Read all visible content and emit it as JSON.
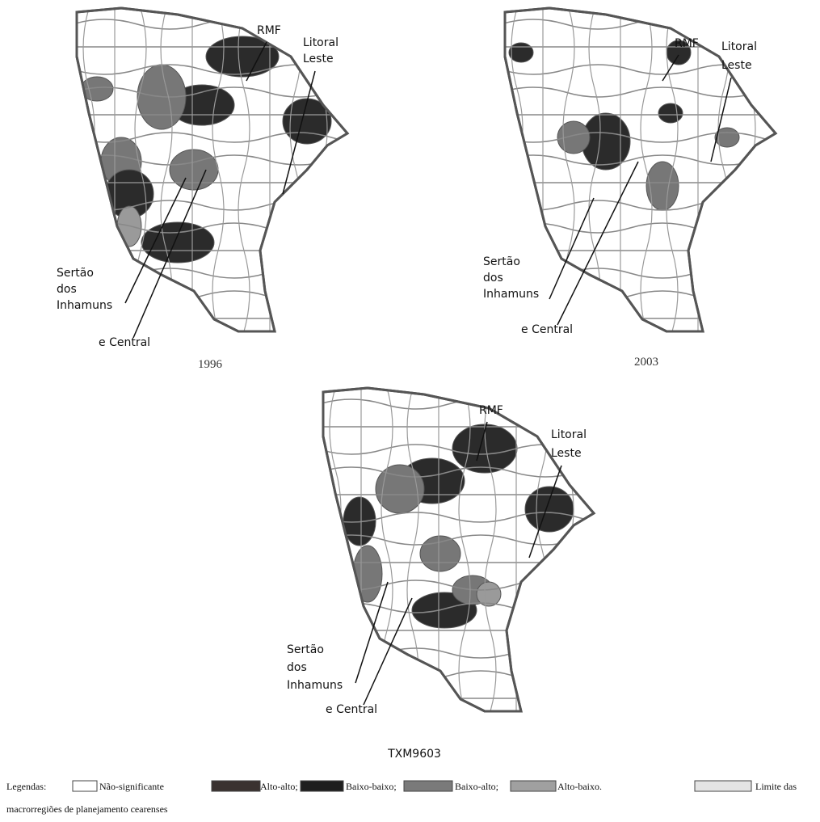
{
  "maps": [
    {
      "caption": "1996",
      "labels": {
        "rmf": "RMF",
        "litoral": [
          "Litoral",
          "Leste"
        ],
        "sertao": [
          "Sertão",
          "dos",
          "Inhamuns"
        ],
        "central": "e Central"
      }
    },
    {
      "caption": "2003",
      "labels": {
        "rmf": "RMF",
        "litoral": [
          "Litoral",
          "Leste"
        ],
        "sertao": [
          "Sertão",
          "dos",
          "Inhamuns"
        ],
        "central": "e Central"
      }
    },
    {
      "caption": "TXM9603",
      "labels": {
        "rmf": "RMF",
        "litoral": [
          "Litoral",
          "Leste"
        ],
        "sertao": [
          "Sertão",
          "dos",
          "Inhamuns"
        ],
        "central": "e Central"
      }
    }
  ],
  "legend": {
    "heading": "Legendas:",
    "items": [
      "Não-significante",
      "Alto-alto;",
      "Baixo-baixo;",
      "Baixo-alto;",
      "Alto-baixo.",
      "Limite das"
    ],
    "continuation": "macrorregiões de planejamento cearenses"
  }
}
